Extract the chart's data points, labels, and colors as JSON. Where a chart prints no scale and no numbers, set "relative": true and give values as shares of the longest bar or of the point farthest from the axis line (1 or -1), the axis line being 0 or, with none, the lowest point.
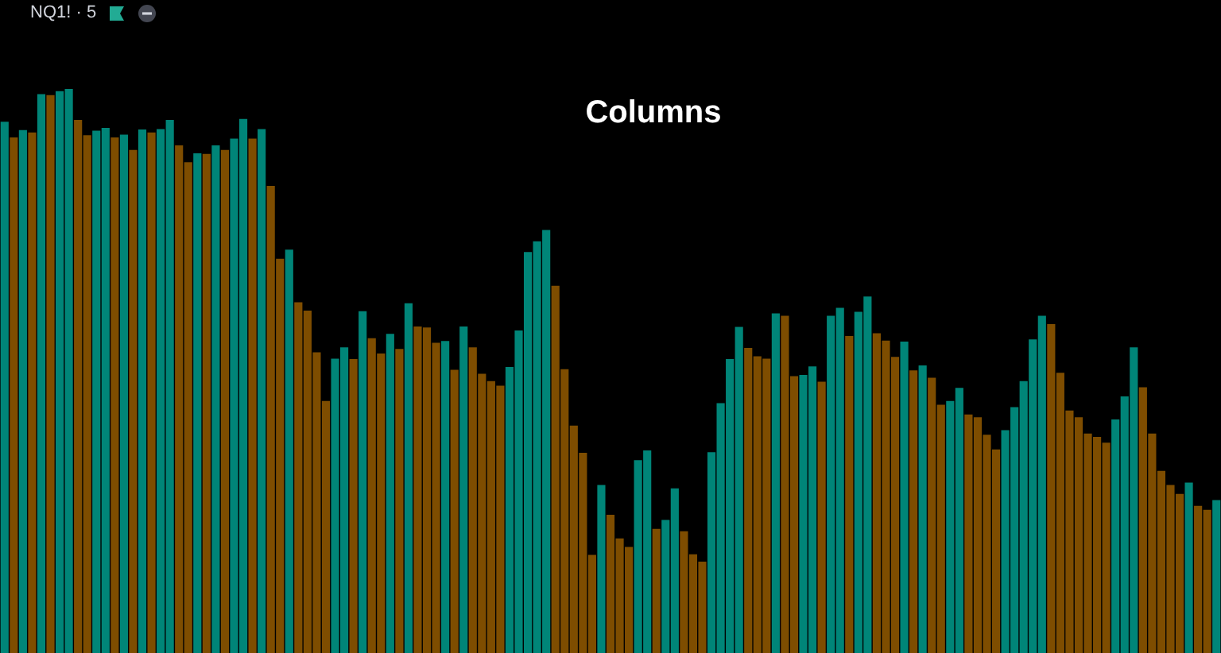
{
  "chart_data": {
    "type": "bar",
    "title": "Columns",
    "subtitle": "NQ1! · 5",
    "relative": true,
    "categories": [
      null,
      null,
      null,
      null,
      null,
      null,
      null,
      null,
      null,
      null,
      null,
      null,
      null,
      null,
      null,
      null,
      null,
      null,
      null,
      null,
      null,
      null,
      null,
      null,
      null,
      null,
      null,
      null,
      null,
      null,
      null,
      null,
      null,
      null,
      null,
      null,
      null,
      null,
      null,
      null,
      null,
      null,
      null,
      null,
      null,
      null,
      null,
      null,
      null,
      null,
      null,
      null,
      null,
      null,
      null,
      null,
      null,
      null,
      null,
      null,
      null,
      null,
      null,
      null,
      null,
      null,
      null,
      null,
      null,
      null,
      null,
      null,
      null,
      null,
      null,
      null,
      null,
      null,
      null,
      null,
      null,
      null,
      null,
      null,
      null,
      null,
      null,
      null,
      null,
      null,
      null,
      null,
      null,
      null,
      null,
      null,
      null,
      null,
      null,
      null,
      null,
      null,
      null,
      null,
      null,
      null,
      null,
      null,
      null,
      null,
      null,
      null,
      null,
      null,
      null,
      null,
      null,
      null,
      null,
      null,
      null,
      null,
      null,
      null,
      null,
      null,
      null,
      null,
      null,
      null,
      null,
      null,
      null
    ],
    "values": [
      0.942,
      0.914,
      0.927,
      0.923,
      0.991,
      0.989,
      0.996,
      1,
      0.945,
      0.918,
      0.926,
      0.931,
      0.914,
      0.919,
      0.892,
      0.928,
      0.923,
      0.929,
      0.945,
      0.9,
      0.87,
      0.886,
      0.885,
      0.9,
      0.892,
      0.912,
      0.947,
      0.912,
      0.929,
      0.828,
      0.699,
      0.715,
      0.622,
      0.607,
      0.533,
      0.447,
      0.522,
      0.542,
      0.521,
      0.606,
      0.558,
      0.531,
      0.566,
      0.539,
      0.62,
      0.579,
      0.577,
      0.55,
      0.553,
      0.502,
      0.579,
      0.542,
      0.495,
      0.482,
      0.474,
      0.507,
      0.572,
      0.711,
      0.73,
      0.75,
      0.651,
      0.503,
      0.403,
      0.355,
      0.174,
      0.298,
      0.245,
      0.203,
      0.188,
      0.342,
      0.359,
      0.22,
      0.236,
      0.292,
      0.216,
      0.175,
      0.162,
      0.356,
      0.443,
      0.521,
      0.578,
      0.541,
      0.526,
      0.522,
      0.602,
      0.598,
      0.491,
      0.493,
      0.508,
      0.481,
      0.598,
      0.612,
      0.562,
      0.605,
      0.632,
      0.567,
      0.554,
      0.525,
      0.552,
      0.501,
      0.51,
      0.488,
      0.44,
      0.447,
      0.47,
      0.423,
      0.418,
      0.387,
      0.361,
      0.395,
      0.436,
      0.482,
      0.556,
      0.598,
      0.583,
      0.497,
      0.43,
      0.418,
      0.389,
      0.383,
      0.373,
      0.414,
      0.455,
      0.542,
      0.471,
      0.389,
      0.323,
      0.298,
      0.282,
      0.302,
      0.261,
      0.254,
      0.271
    ],
    "colors": [
      "#008578",
      "#7e4d00",
      "#008578",
      "#7e4d00",
      "#008578",
      "#7e4d00",
      "#008578",
      "#008578",
      "#7e4d00",
      "#7e4d00",
      "#008578",
      "#008578",
      "#7e4d00",
      "#008578",
      "#7e4d00",
      "#008578",
      "#7e4d00",
      "#008578",
      "#008578",
      "#7e4d00",
      "#7e4d00",
      "#008578",
      "#7e4d00",
      "#008578",
      "#7e4d00",
      "#008578",
      "#008578",
      "#7e4d00",
      "#008578",
      "#7e4d00",
      "#7e4d00",
      "#008578",
      "#7e4d00",
      "#7e4d00",
      "#7e4d00",
      "#7e4d00",
      "#008578",
      "#008578",
      "#7e4d00",
      "#008578",
      "#7e4d00",
      "#7e4d00",
      "#008578",
      "#7e4d00",
      "#008578",
      "#7e4d00",
      "#7e4d00",
      "#7e4d00",
      "#008578",
      "#7e4d00",
      "#008578",
      "#7e4d00",
      "#7e4d00",
      "#7e4d00",
      "#7e4d00",
      "#008578",
      "#008578",
      "#008578",
      "#008578",
      "#008578",
      "#7e4d00",
      "#7e4d00",
      "#7e4d00",
      "#7e4d00",
      "#7e4d00",
      "#008578",
      "#7e4d00",
      "#7e4d00",
      "#7e4d00",
      "#008578",
      "#008578",
      "#7e4d00",
      "#008578",
      "#008578",
      "#7e4d00",
      "#7e4d00",
      "#7e4d00",
      "#008578",
      "#008578",
      "#008578",
      "#008578",
      "#7e4d00",
      "#7e4d00",
      "#7e4d00",
      "#008578",
      "#7e4d00",
      "#7e4d00",
      "#008578",
      "#008578",
      "#7e4d00",
      "#008578",
      "#008578",
      "#7e4d00",
      "#008578",
      "#008578",
      "#7e4d00",
      "#7e4d00",
      "#7e4d00",
      "#008578",
      "#7e4d00",
      "#008578",
      "#7e4d00",
      "#7e4d00",
      "#008578",
      "#008578",
      "#7e4d00",
      "#7e4d00",
      "#7e4d00",
      "#7e4d00",
      "#008578",
      "#008578",
      "#008578",
      "#008578",
      "#008578",
      "#7e4d00",
      "#7e4d00",
      "#7e4d00",
      "#7e4d00",
      "#7e4d00",
      "#7e4d00",
      "#7e4d00",
      "#008578",
      "#008578",
      "#008578",
      "#7e4d00",
      "#7e4d00",
      "#7e4d00",
      "#7e4d00",
      "#7e4d00",
      "#008578",
      "#7e4d00",
      "#7e4d00",
      "#008578"
    ]
  }
}
